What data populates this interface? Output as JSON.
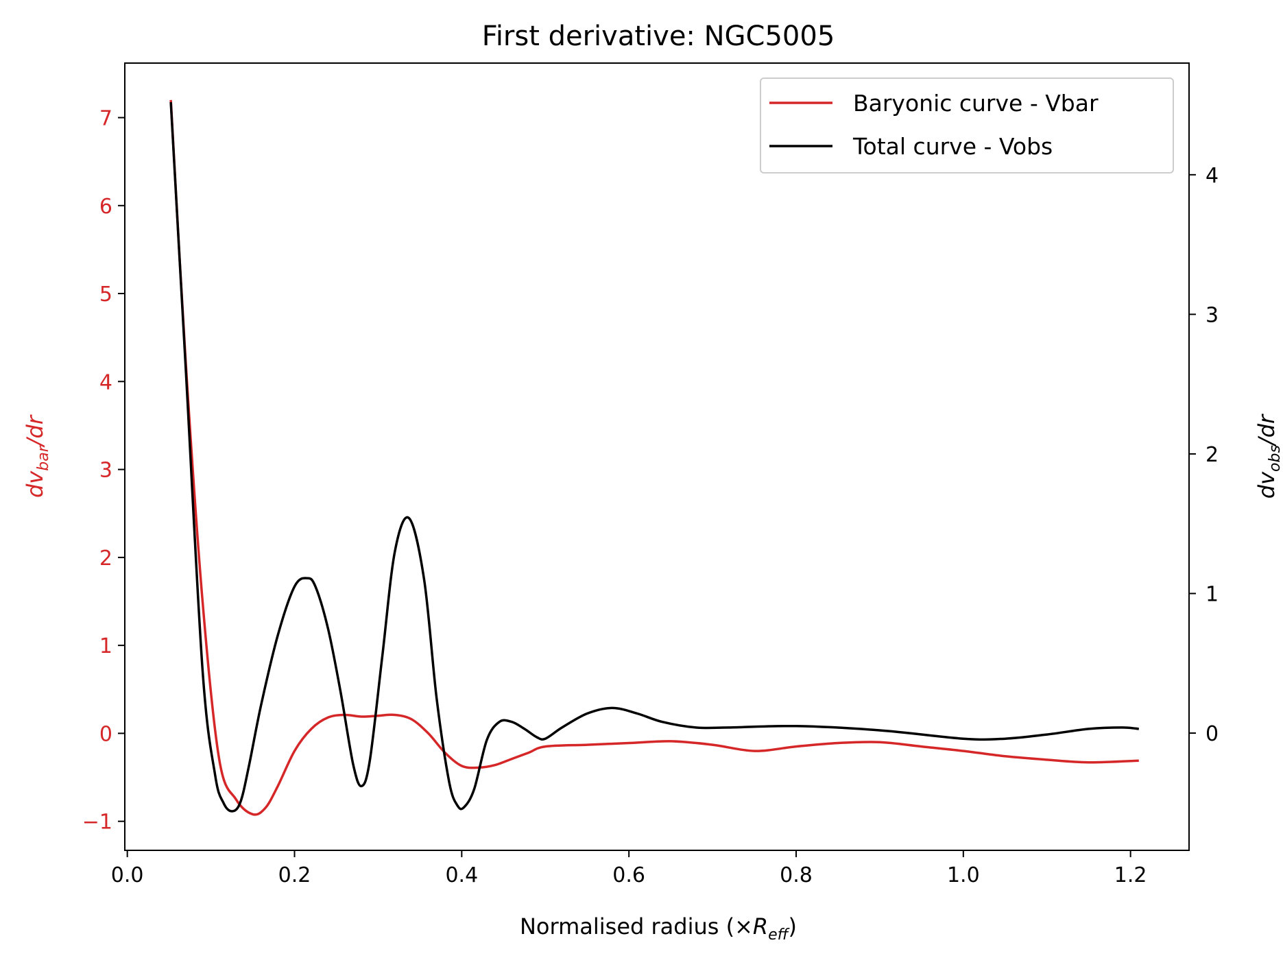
{
  "chart_data": {
    "type": "line",
    "title": "First derivative: NGC5005",
    "xlabel": "Normalised radius (×R_eff)",
    "ylabel_left": "dv_bar/dr",
    "ylabel_right": "dv_obs/dr",
    "xlim": [
      -0.003,
      1.27
    ],
    "ylim_left": [
      -1.33,
      7.62
    ],
    "ylim_right": [
      -0.84,
      4.8
    ],
    "xticks": [
      "0.0",
      "0.2",
      "0.4",
      "0.6",
      "0.8",
      "1.0",
      "1.2"
    ],
    "yticks_left": [
      "−1",
      "0",
      "1",
      "2",
      "3",
      "4",
      "5",
      "6",
      "7"
    ],
    "yticks_right": [
      "0",
      "1",
      "2",
      "3",
      "4"
    ],
    "legend_position": "top-right",
    "colors": {
      "bar": "#d62728",
      "obs": "#000000",
      "left_axis": "#d62728",
      "right_axis": "#000000"
    },
    "series": [
      {
        "name": "Baryonic curve - Vbar",
        "axis": "left",
        "x": [
          0.052,
          0.07,
          0.09,
          0.11,
          0.13,
          0.15,
          0.165,
          0.18,
          0.2,
          0.22,
          0.24,
          0.26,
          0.28,
          0.3,
          0.32,
          0.34,
          0.36,
          0.38,
          0.4,
          0.42,
          0.44,
          0.46,
          0.48,
          0.5,
          0.55,
          0.6,
          0.65,
          0.7,
          0.75,
          0.8,
          0.85,
          0.9,
          0.95,
          1.0,
          1.05,
          1.1,
          1.15,
          1.21
        ],
        "y": [
          7.2,
          4.2,
          1.5,
          -0.3,
          -0.75,
          -0.92,
          -0.85,
          -0.6,
          -0.2,
          0.05,
          0.18,
          0.21,
          0.19,
          0.2,
          0.21,
          0.16,
          0.0,
          -0.22,
          -0.37,
          -0.39,
          -0.36,
          -0.29,
          -0.22,
          -0.15,
          -0.13,
          -0.11,
          -0.09,
          -0.13,
          -0.2,
          -0.15,
          -0.11,
          -0.1,
          -0.15,
          -0.2,
          -0.26,
          -0.3,
          -0.33,
          -0.31
        ]
      },
      {
        "name": "Total curve - Vobs",
        "axis": "right",
        "x": [
          0.052,
          0.07,
          0.09,
          0.105,
          0.115,
          0.125,
          0.135,
          0.145,
          0.16,
          0.18,
          0.2,
          0.215,
          0.225,
          0.24,
          0.255,
          0.27,
          0.28,
          0.29,
          0.305,
          0.32,
          0.337,
          0.355,
          0.37,
          0.385,
          0.395,
          0.403,
          0.415,
          0.43,
          0.445,
          0.46,
          0.475,
          0.49,
          0.5,
          0.52,
          0.55,
          0.58,
          0.61,
          0.64,
          0.68,
          0.72,
          0.8,
          0.9,
          1.0,
          1.05,
          1.1,
          1.15,
          1.19,
          1.21
        ],
        "y": [
          4.52,
          2.6,
          0.45,
          -0.3,
          -0.5,
          -0.56,
          -0.5,
          -0.25,
          0.2,
          0.7,
          1.05,
          1.11,
          1.05,
          0.75,
          0.3,
          -0.22,
          -0.38,
          -0.2,
          0.55,
          1.3,
          1.54,
          1.1,
          0.25,
          -0.35,
          -0.52,
          -0.53,
          -0.4,
          -0.05,
          0.08,
          0.08,
          0.03,
          -0.03,
          -0.04,
          0.04,
          0.14,
          0.18,
          0.14,
          0.08,
          0.04,
          0.04,
          0.05,
          0.02,
          -0.04,
          -0.04,
          -0.01,
          0.03,
          0.04,
          0.03
        ]
      }
    ]
  }
}
